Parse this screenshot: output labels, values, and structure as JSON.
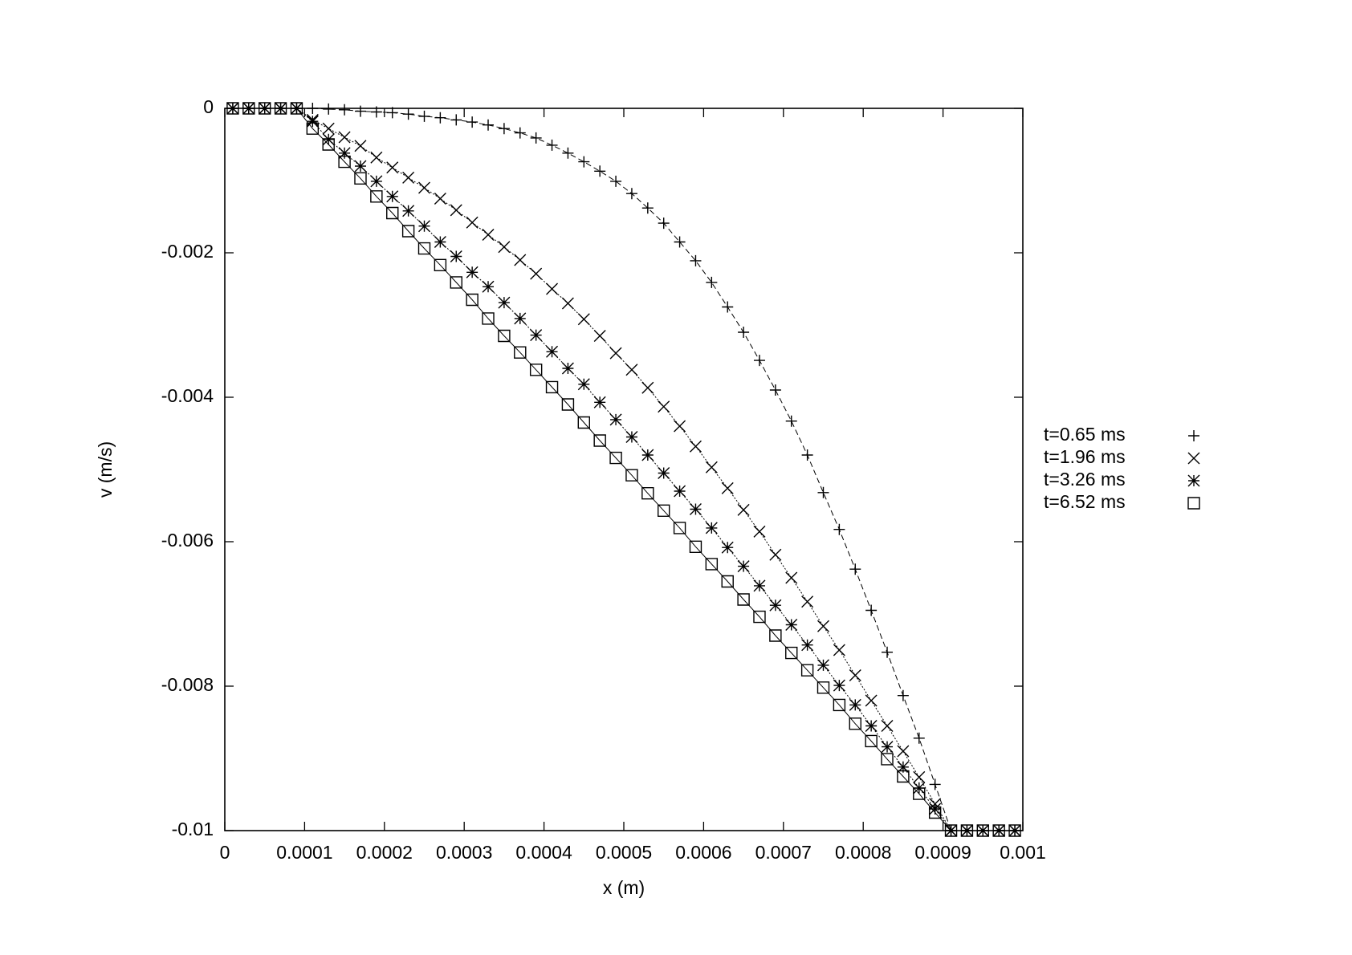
{
  "chart_data": {
    "type": "line",
    "x_label": "x (m)",
    "y_label": "v (m/s)",
    "xlim": [
      0,
      0.001
    ],
    "ylim": [
      -0.01,
      0
    ],
    "xticks": [
      0,
      0.0001,
      0.0002,
      0.0003,
      0.0004,
      0.0005,
      0.0006,
      0.0007,
      0.0008,
      0.0009,
      0.001
    ],
    "yticks": [
      0,
      -0.002,
      -0.004,
      -0.006,
      -0.008,
      -0.01
    ],
    "grid": false,
    "legend": "outside-right",
    "x": [
      1e-05,
      3e-05,
      5e-05,
      7e-05,
      9e-05,
      0.00011,
      0.00013,
      0.00015,
      0.00017,
      0.00019,
      0.00021,
      0.00023,
      0.00025,
      0.00027,
      0.00029,
      0.00031,
      0.00033,
      0.00035,
      0.00037,
      0.00039,
      0.00041,
      0.00043,
      0.00045,
      0.00047,
      0.00049,
      0.00051,
      0.00053,
      0.00055,
      0.00057,
      0.00059,
      0.00061,
      0.00063,
      0.00065,
      0.00067,
      0.00069,
      0.00071,
      0.00073,
      0.00075,
      0.00077,
      0.00079,
      0.00081,
      0.00083,
      0.00085,
      0.00087,
      0.00089,
      0.00091,
      0.00093,
      0.00095,
      0.00097,
      0.00099
    ],
    "series": [
      {
        "name": "t=0.65 ms",
        "color": "#000000",
        "marker": "plus",
        "dash": "dashed",
        "values": [
          0,
          0,
          0,
          0,
          0,
          0,
          -1e-05,
          -2e-05,
          -4e-05,
          -5e-05,
          -6e-05,
          -8e-05,
          -0.00011,
          -0.00013,
          -0.00016,
          -0.00019,
          -0.00023,
          -0.00028,
          -0.00034,
          -0.00041,
          -0.00051,
          -0.00062,
          -0.00074,
          -0.00087,
          -0.00101,
          -0.00118,
          -0.00138,
          -0.00159,
          -0.00185,
          -0.00211,
          -0.00241,
          -0.00275,
          -0.0031,
          -0.00349,
          -0.0039,
          -0.00433,
          -0.0048,
          -0.00532,
          -0.00583,
          -0.00638,
          -0.00695,
          -0.00753,
          -0.00813,
          -0.00872,
          -0.00936,
          -0.01,
          -0.01,
          -0.01,
          -0.01,
          -0.01
        ]
      },
      {
        "name": "t=1.96 ms",
        "color": "#000000",
        "marker": "cross",
        "dash": "dotted",
        "values": [
          0,
          0,
          0,
          0,
          0,
          -0.00016,
          -0.00028,
          -0.0004,
          -0.00052,
          -0.00068,
          -0.00082,
          -0.00096,
          -0.0011,
          -0.00125,
          -0.00141,
          -0.00158,
          -0.00175,
          -0.00192,
          -0.0021,
          -0.00229,
          -0.0025,
          -0.0027,
          -0.00292,
          -0.00315,
          -0.00339,
          -0.00362,
          -0.00387,
          -0.00413,
          -0.0044,
          -0.00468,
          -0.00497,
          -0.00526,
          -0.00556,
          -0.00586,
          -0.00618,
          -0.0065,
          -0.00683,
          -0.00717,
          -0.0075,
          -0.00785,
          -0.0082,
          -0.00855,
          -0.0089,
          -0.00926,
          -0.00963,
          -0.01,
          -0.01,
          -0.01,
          -0.01,
          -0.01
        ]
      },
      {
        "name": "t=3.26 ms",
        "color": "#000000",
        "marker": "star",
        "dash": "dotted",
        "values": [
          0,
          0,
          0,
          0,
          0,
          -0.00018,
          -0.00043,
          -0.00062,
          -0.0008,
          -0.00101,
          -0.00122,
          -0.00142,
          -0.00163,
          -0.00185,
          -0.00205,
          -0.00227,
          -0.00247,
          -0.00269,
          -0.00291,
          -0.00314,
          -0.00337,
          -0.0036,
          -0.00382,
          -0.00407,
          -0.00431,
          -0.00455,
          -0.0048,
          -0.00505,
          -0.0053,
          -0.00555,
          -0.00581,
          -0.00608,
          -0.00634,
          -0.00661,
          -0.00688,
          -0.00715,
          -0.00743,
          -0.00771,
          -0.00799,
          -0.00826,
          -0.00855,
          -0.00884,
          -0.00912,
          -0.00941,
          -0.0097,
          -0.01,
          -0.01,
          -0.01,
          -0.01,
          -0.01
        ]
      },
      {
        "name": "t=6.52 ms",
        "color": "#000000",
        "marker": "square",
        "dash": "solid",
        "values": [
          0,
          0,
          0,
          0,
          0,
          -0.00028,
          -0.0005,
          -0.00074,
          -0.00097,
          -0.00122,
          -0.00145,
          -0.0017,
          -0.00194,
          -0.00217,
          -0.00241,
          -0.00265,
          -0.00291,
          -0.00315,
          -0.00338,
          -0.00362,
          -0.00386,
          -0.0041,
          -0.00435,
          -0.0046,
          -0.00484,
          -0.00508,
          -0.00533,
          -0.00557,
          -0.00581,
          -0.00607,
          -0.00631,
          -0.00655,
          -0.0068,
          -0.00704,
          -0.0073,
          -0.00754,
          -0.00778,
          -0.00802,
          -0.00826,
          -0.00852,
          -0.00876,
          -0.00901,
          -0.00925,
          -0.00949,
          -0.00975,
          -0.01,
          -0.01,
          -0.01,
          -0.01,
          -0.01
        ]
      }
    ]
  }
}
